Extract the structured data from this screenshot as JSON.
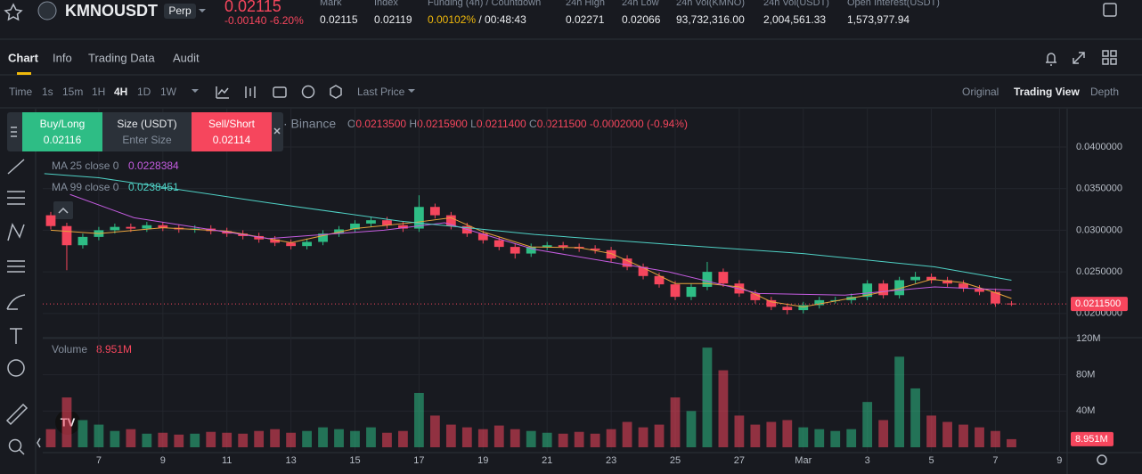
{
  "header": {
    "symbol": "KMNOUSDT",
    "badge": "Perp",
    "price": "0.02115",
    "change": "-0.00140",
    "change_pct": "-6.20%",
    "stats": [
      {
        "label": "Mark",
        "value": "0.02115"
      },
      {
        "label": "Index",
        "value": "0.02119"
      },
      {
        "label": "Funding (4h) / Countdown",
        "value": "0.00102%",
        "extra": "/ 00:48:43"
      },
      {
        "label": "24h High",
        "value": "0.02271"
      },
      {
        "label": "24h Low",
        "value": "0.02066"
      },
      {
        "label": "24h Vol(KMNO)",
        "value": "93,732,316.00"
      },
      {
        "label": "24h Vol(USDT)",
        "value": "2,004,561.33"
      },
      {
        "label": "Open Interest(USDT)",
        "value": "1,573,977.94"
      }
    ]
  },
  "tabs": {
    "items": [
      "Chart",
      "Info",
      "Trading Data",
      "Audit"
    ],
    "active_index": 0
  },
  "toolbar": {
    "intervals": [
      "Time",
      "1s",
      "15m",
      "1H",
      "4H",
      "1D",
      "1W"
    ],
    "active_index": 4,
    "price_source": "Last Price",
    "views": [
      "Original",
      "Trading View",
      "Depth"
    ],
    "active_view": 1
  },
  "order_panel": {
    "buy_label": "Buy/Long",
    "buy_price": "0.02116",
    "size_label": "Size (USDT)",
    "size_placeholder": "Enter Size",
    "sell_label": "Sell/Short",
    "sell_price": "0.02114"
  },
  "chart_data": {
    "type": "candlestick",
    "source": "· Binance",
    "ohlc_legend": [
      "O",
      "0.0213500",
      "H",
      "0.0215900",
      "L",
      "0.0211400",
      "C",
      "0.0211500"
    ],
    "change_legend": "-0.0002000 (-0.94%)",
    "up_color": "#2ebd85",
    "down_color": "#f6465d",
    "grid": true,
    "xlim": [
      5.25,
      37.24
    ],
    "xticks": [
      7,
      9,
      11,
      13,
      15,
      17,
      19,
      21,
      23,
      25,
      27,
      {
        "value": 29,
        "label": "Mar"
      },
      {
        "value": 31,
        "label": "3"
      },
      {
        "value": 33,
        "label": "5"
      },
      {
        "value": 35,
        "label": "7"
      },
      {
        "value": 37,
        "label": "9"
      }
    ],
    "ylim": [
      0.0172,
      0.0446
    ],
    "yticks": [
      {
        "value": 0.02,
        "label": "0.0200000"
      },
      {
        "value": 0.025,
        "label": "0.0250000"
      },
      {
        "value": 0.03,
        "label": "0.0300000"
      },
      {
        "value": 0.035,
        "label": "0.0350000"
      },
      {
        "value": 0.04,
        "label": "0.0400000"
      }
    ],
    "last_price_label": "0.0211500",
    "x": [
      5.5,
      6,
      6.5,
      7,
      7.5,
      8,
      8.5,
      9,
      9.5,
      10,
      10.5,
      11,
      11.5,
      12,
      12.5,
      13,
      13.5,
      14,
      14.5,
      15,
      15.5,
      16,
      16.5,
      17,
      17.5,
      18,
      18.5,
      19,
      19.5,
      20,
      20.5,
      21,
      21.5,
      22,
      22.5,
      23,
      23.5,
      24,
      24.5,
      25,
      25.5,
      26,
      26.5,
      27,
      27.5,
      28,
      28.5,
      29,
      29.5,
      30,
      30.5,
      31,
      31.5,
      32,
      32.5,
      33,
      33.5,
      34,
      34.5,
      35,
      35.5
    ],
    "open": [
      0.0318,
      0.0305,
      0.0282,
      0.0292,
      0.03,
      0.0304,
      0.0302,
      0.0306,
      0.0303,
      0.0301,
      0.0302,
      0.0299,
      0.0296,
      0.0293,
      0.0289,
      0.0285,
      0.0281,
      0.0286,
      0.0296,
      0.0301,
      0.0308,
      0.0312,
      0.0306,
      0.0302,
      0.0328,
      0.0318,
      0.0305,
      0.0296,
      0.0288,
      0.028,
      0.0272,
      0.028,
      0.0282,
      0.028,
      0.0278,
      0.0276,
      0.0266,
      0.0256,
      0.0245,
      0.0235,
      0.022,
      0.0232,
      0.025,
      0.0236,
      0.0224,
      0.0216,
      0.0208,
      0.0204,
      0.021,
      0.0216,
      0.0216,
      0.022,
      0.0236,
      0.0222,
      0.024,
      0.0244,
      0.024,
      0.0236,
      0.023,
      0.0226,
      0.0212
    ],
    "high": [
      0.0322,
      0.0309,
      0.0296,
      0.0304,
      0.0308,
      0.0308,
      0.031,
      0.031,
      0.0307,
      0.0306,
      0.0306,
      0.0303,
      0.03,
      0.0297,
      0.0293,
      0.0289,
      0.029,
      0.03,
      0.0305,
      0.0312,
      0.0316,
      0.0316,
      0.031,
      0.0342,
      0.0332,
      0.0322,
      0.0309,
      0.03,
      0.0292,
      0.0284,
      0.0284,
      0.0286,
      0.0286,
      0.0284,
      0.0282,
      0.028,
      0.027,
      0.026,
      0.0249,
      0.0239,
      0.0236,
      0.0262,
      0.0254,
      0.024,
      0.0228,
      0.022,
      0.0212,
      0.0214,
      0.022,
      0.022,
      0.0224,
      0.024,
      0.024,
      0.0244,
      0.025,
      0.0248,
      0.0244,
      0.024,
      0.0234,
      0.023,
      0.0215
    ],
    "low": [
      0.0301,
      0.0252,
      0.0278,
      0.0288,
      0.0296,
      0.0298,
      0.0298,
      0.0299,
      0.0297,
      0.0297,
      0.0295,
      0.0292,
      0.0289,
      0.0285,
      0.0281,
      0.0277,
      0.0277,
      0.0282,
      0.0292,
      0.0297,
      0.0304,
      0.0302,
      0.0298,
      0.0298,
      0.0314,
      0.0301,
      0.0292,
      0.0284,
      0.0276,
      0.0266,
      0.0268,
      0.0276,
      0.0276,
      0.0274,
      0.0272,
      0.0262,
      0.0252,
      0.0241,
      0.0231,
      0.0216,
      0.0216,
      0.0228,
      0.0232,
      0.022,
      0.0212,
      0.0204,
      0.0199,
      0.02,
      0.0206,
      0.0212,
      0.0212,
      0.0216,
      0.0218,
      0.0218,
      0.0236,
      0.0236,
      0.0232,
      0.0226,
      0.0222,
      0.0208,
      0.0209
    ],
    "close": [
      0.0305,
      0.0282,
      0.0292,
      0.03,
      0.0304,
      0.0302,
      0.0306,
      0.0303,
      0.0301,
      0.0302,
      0.0299,
      0.0296,
      0.0293,
      0.0289,
      0.0285,
      0.0281,
      0.0286,
      0.0296,
      0.0301,
      0.0308,
      0.0312,
      0.0306,
      0.0302,
      0.0328,
      0.0318,
      0.0305,
      0.0296,
      0.0288,
      0.028,
      0.0272,
      0.028,
      0.0282,
      0.028,
      0.0278,
      0.0276,
      0.0266,
      0.0256,
      0.0245,
      0.0235,
      0.022,
      0.0232,
      0.025,
      0.0236,
      0.0224,
      0.0216,
      0.0208,
      0.0204,
      0.021,
      0.0216,
      0.0216,
      0.022,
      0.0236,
      0.0222,
      0.024,
      0.0244,
      0.024,
      0.0236,
      0.023,
      0.0226,
      0.0212,
      0.02115
    ],
    "ma_series": [
      {
        "color": "#e8a33d",
        "x": [
          5.5,
          7,
          9,
          11,
          13,
          15,
          17,
          18,
          19,
          20.5,
          22,
          23,
          24,
          25,
          26,
          27,
          28,
          29,
          30,
          31,
          32,
          33,
          34,
          35,
          35.5
        ],
        "values": [
          0.03,
          0.0296,
          0.0303,
          0.0299,
          0.0285,
          0.0302,
          0.031,
          0.0315,
          0.0298,
          0.028,
          0.0279,
          0.0272,
          0.0255,
          0.0236,
          0.0236,
          0.0232,
          0.0214,
          0.0208,
          0.0215,
          0.0222,
          0.023,
          0.0241,
          0.0237,
          0.0225,
          0.0218
        ]
      },
      {
        "name": "MA 25 close 0",
        "last_value": 0.0228384,
        "color": "#c45ce0",
        "x": [
          6.1,
          8.1,
          12.3,
          15.9,
          17.8,
          20.6,
          24.8,
          27.6,
          30.3,
          33.1,
          35.5
        ],
        "values": [
          0.0343,
          0.0315,
          0.029,
          0.03,
          0.0309,
          0.0277,
          0.025,
          0.0224,
          0.0222,
          0.0232,
          0.0228
        ]
      },
      {
        "name": "MA 99 close 0",
        "last_value": 0.0238451,
        "color": "#4fd1c5",
        "x": [
          5.3,
          7,
          12.3,
          16.4,
          20.6,
          24.8,
          29,
          33.1,
          35.5
        ],
        "values": [
          0.0368,
          0.0363,
          0.0333,
          0.0311,
          0.0295,
          0.0283,
          0.0272,
          0.0256,
          0.024
        ]
      }
    ],
    "volume_title": "Volume",
    "last_volume_label": "8.951M",
    "volume_ylim": [
      0,
      120000000
    ],
    "volume_yticks": [
      {
        "value": 40000000,
        "label": "40M"
      },
      {
        "value": 80000000,
        "label": "80M"
      },
      {
        "value": 120000000,
        "label": "120M"
      }
    ],
    "volume": [
      20000000,
      55000000,
      30000000,
      25000000,
      18000000,
      20000000,
      15000000,
      16000000,
      14000000,
      15000000,
      17000000,
      16000000,
      15000000,
      18000000,
      20000000,
      16000000,
      18000000,
      22000000,
      20000000,
      18000000,
      22000000,
      16000000,
      18000000,
      60000000,
      35000000,
      25000000,
      22000000,
      20000000,
      24000000,
      20000000,
      18000000,
      16000000,
      15000000,
      17000000,
      15000000,
      20000000,
      28000000,
      22000000,
      25000000,
      55000000,
      40000000,
      110000000,
      85000000,
      35000000,
      25000000,
      28000000,
      30000000,
      22000000,
      20000000,
      18000000,
      20000000,
      50000000,
      30000000,
      100000000,
      65000000,
      35000000,
      28000000,
      25000000,
      22000000,
      18000000,
      8951000
    ]
  }
}
